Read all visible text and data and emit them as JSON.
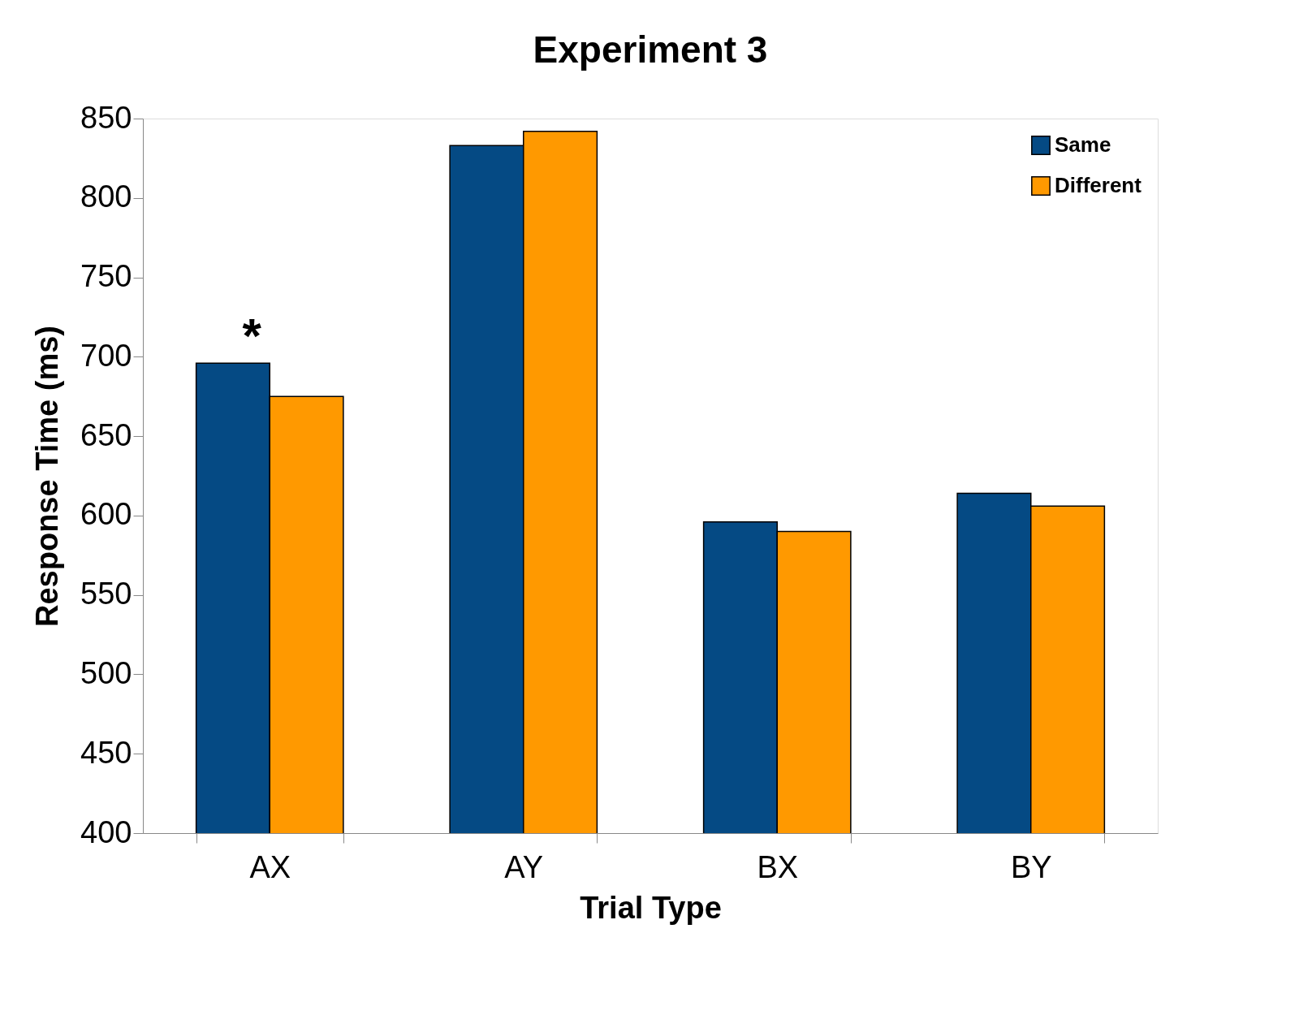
{
  "chart_data": {
    "type": "bar",
    "title": "Experiment 3",
    "xlabel": "Trial Type",
    "ylabel": "Response Time (ms)",
    "categories": [
      "AX",
      "AY",
      "BX",
      "BY"
    ],
    "series": [
      {
        "name": "Same",
        "color": "#054a84",
        "values": [
          696,
          833,
          596,
          614
        ]
      },
      {
        "name": "Different",
        "color": "#ff9900",
        "values": [
          675,
          842,
          590,
          606
        ]
      }
    ],
    "ylim": [
      400,
      850
    ],
    "yticks": [
      400,
      450,
      500,
      550,
      600,
      650,
      700,
      750,
      800,
      850
    ],
    "grid": false,
    "legend": "top right",
    "annotations": [
      "*"
    ]
  }
}
